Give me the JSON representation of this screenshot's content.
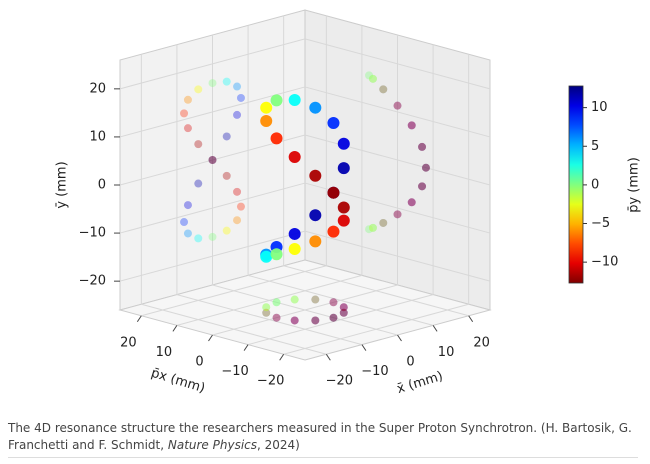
{
  "chart_data": {
    "type": "scatter3d",
    "x_label": "x̄ (mm)",
    "z_label": "p̄x (mm)",
    "y_label": "ȳ (mm)",
    "colorbar_label": "p̄y (mm)",
    "xlim": [
      -26,
      26
    ],
    "zlim": [
      -26,
      26
    ],
    "ylim": [
      -26,
      26
    ],
    "clim": [
      -12.7,
      12.8
    ],
    "xticks": [
      {
        "value": -20,
        "label": "−20"
      },
      {
        "value": -10,
        "label": "−10"
      },
      0,
      10,
      20
    ],
    "zticks": [
      {
        "value": -20,
        "label": "−20"
      },
      {
        "value": -10,
        "label": "−10"
      },
      0,
      10,
      20
    ],
    "yticks": [
      {
        "value": -20,
        "label": "−20"
      },
      {
        "value": -10,
        "label": "−10"
      },
      0,
      10,
      20
    ],
    "cticks": [
      {
        "value": -10,
        "label": "−10"
      },
      {
        "value": -5,
        "label": "−5"
      },
      0,
      5,
      10
    ],
    "colormap": "jet_r",
    "grid": true,
    "projections": true,
    "x": [
      0,
      4,
      6.9,
      8,
      6.9,
      4,
      0,
      -4,
      -6.9,
      -8,
      -6.9,
      -4,
      0,
      4,
      6.9,
      8,
      6.9,
      4,
      0,
      -4,
      -6.9,
      -8,
      -6.9,
      -4
    ],
    "z": [
      8,
      6.9,
      4,
      0,
      -4,
      -6.9,
      -8,
      -6.9,
      -4,
      0,
      4,
      6.9,
      8,
      6.9,
      4,
      0,
      -4,
      -6.9,
      -8,
      -6.9,
      -4,
      0,
      4,
      6.9
    ],
    "y": [
      16,
      15.5,
      13.9,
      11.3,
      8,
      4.1,
      0,
      -4.1,
      -8,
      -11.3,
      -13.9,
      -15.5,
      -16,
      -15.5,
      -13.9,
      -11.3,
      -8,
      -4.1,
      0,
      4.1,
      8,
      11.3,
      13.9,
      15.5
    ],
    "c": [
      0,
      3.1,
      6,
      8.5,
      10.4,
      11.6,
      12,
      11.6,
      10.4,
      8.5,
      6,
      3.1,
      0,
      -3.1,
      -6,
      -8.5,
      -10.4,
      -11.6,
      -12,
      -11.6,
      -10.4,
      -8.5,
      -6,
      -3.1
    ]
  },
  "caption": {
    "before": "The 4D resonance structure the researchers measured in the Super Proton Synchrotron. (H. Bartosik, G. Franchetti and F. Schmidt, ",
    "italic": "Nature Physics",
    "after": ", 2024)"
  }
}
